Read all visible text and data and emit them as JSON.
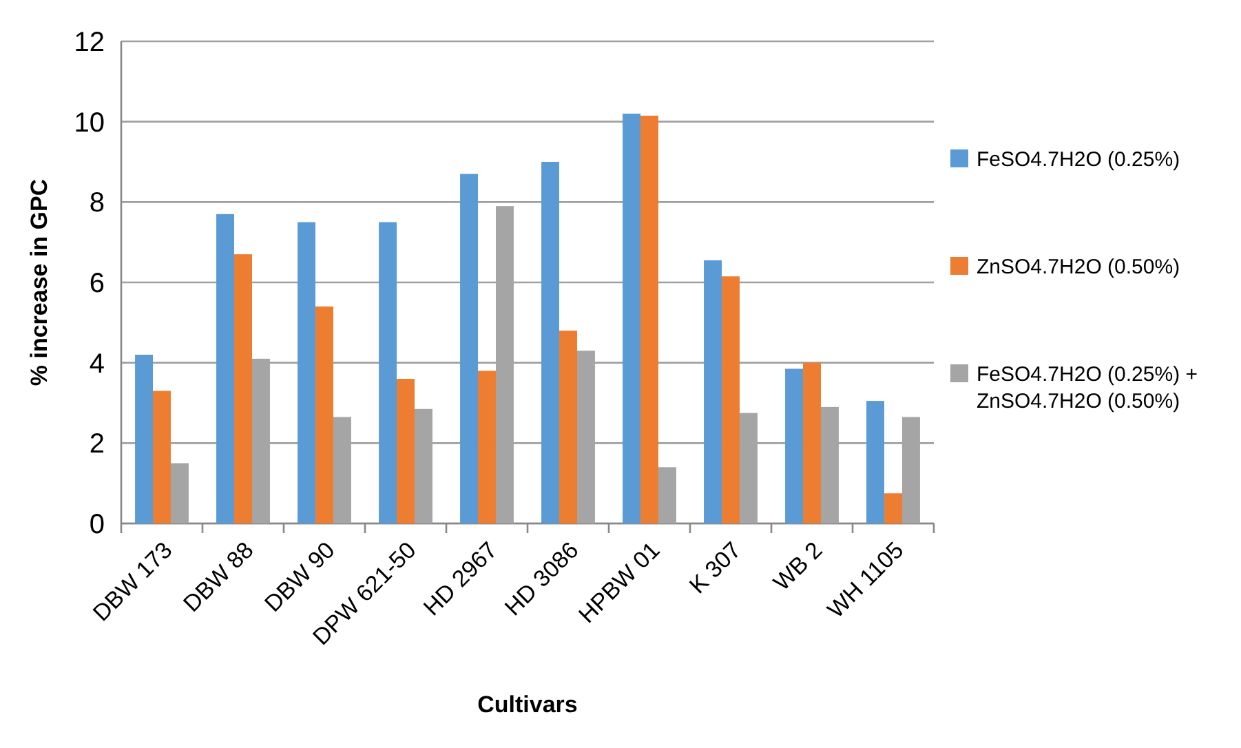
{
  "chart_data": {
    "type": "bar",
    "xlabel": "Cultivars",
    "ylabel": "% increase in GPC",
    "categories": [
      "DBW 173",
      "DBW 88",
      "DBW 90",
      "DPW 621-50",
      "HD 2967",
      "HD 3086",
      "HPBW 01",
      "K 307",
      "WB 2",
      "WH 1105"
    ],
    "series": [
      {
        "name": "FeSO4.7H2O (0.25%)",
        "color": "#5b9bd5",
        "values": [
          4.2,
          7.7,
          7.5,
          7.5,
          8.7,
          9.0,
          10.2,
          6.55,
          3.85,
          3.05
        ]
      },
      {
        "name": "ZnSO4.7H2O (0.50%)",
        "color": "#ed7d31",
        "values": [
          3.3,
          6.7,
          5.4,
          3.6,
          3.8,
          4.8,
          10.15,
          6.15,
          4.0,
          0.75
        ]
      },
      {
        "name": "FeSO4.7H2O (0.25%) + ZnSO4.7H2O (0.50%)",
        "color": "#a5a5a5",
        "values": [
          1.5,
          4.1,
          2.65,
          2.85,
          7.9,
          4.3,
          1.4,
          2.75,
          2.9,
          2.65
        ]
      }
    ],
    "ylim": [
      0,
      12
    ],
    "yticks": [
      0,
      2,
      4,
      6,
      8,
      10,
      12
    ],
    "grid": "y",
    "legend": "right"
  }
}
